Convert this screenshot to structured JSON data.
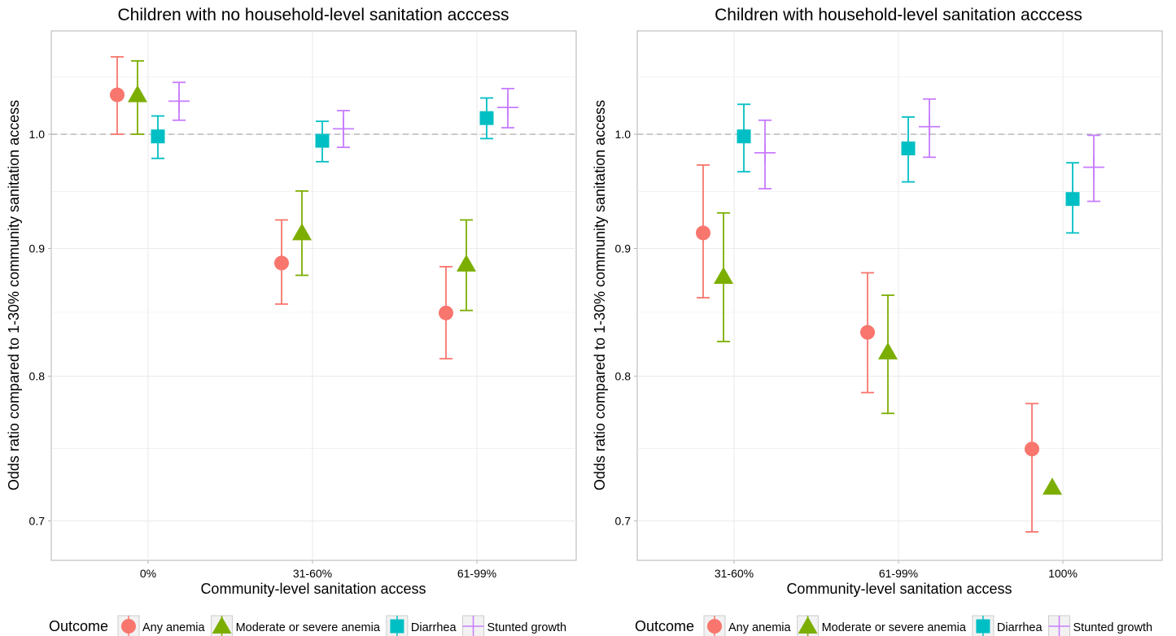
{
  "colors": {
    "any_anemia": "#F8766D",
    "moderate_severe_anemia": "#7CAE00",
    "diarrhea": "#00BFC4",
    "stunted_growth": "#C77CFF",
    "grid": "#EBEBEB",
    "reference_line": "#B3B3B3",
    "panel_border": "#B3B3B3",
    "text": "#000000",
    "tick_text": "#4D4D4D"
  },
  "legend": {
    "title": "Outcome",
    "items": [
      {
        "label": "Any anemia",
        "shape": "circle",
        "color_key": "any_anemia"
      },
      {
        "label": "Moderate or severe anemia",
        "shape": "triangle",
        "color_key": "moderate_severe_anemia"
      },
      {
        "label": "Diarrhea",
        "shape": "square",
        "color_key": "diarrhea"
      },
      {
        "label": "Stunted growth",
        "shape": "cross",
        "color_key": "stunted_growth"
      }
    ]
  },
  "chart_data": [
    {
      "type": "scatter",
      "title": "Children with no household-level sanitation acccess",
      "xlabel": "Community-level sanitation access",
      "ylabel": "Odds ratio compared to 1-30% community sanitation access",
      "y_scale": "log",
      "ylim": [
        0.675,
        1.1
      ],
      "yticks": [
        0.7,
        0.8,
        0.9,
        1.0
      ],
      "ytick_labels": [
        "0.7",
        "0.8",
        "0.9",
        "1.0"
      ],
      "reference_line": 1.0,
      "grid": true,
      "categories": [
        "0%",
        "31-60%",
        "61-99%"
      ],
      "series": [
        {
          "name": "Any anemia",
          "color_key": "any_anemia",
          "shape": "circle",
          "values": [
            1.037,
            0.888,
            0.848
          ],
          "lower": [
            1.0,
            0.855,
            0.813
          ],
          "upper": [
            1.074,
            0.924,
            0.885
          ]
        },
        {
          "name": "Moderate or severe anemia",
          "color_key": "moderate_severe_anemia",
          "shape": "triangle",
          "values": [
            1.037,
            0.913,
            0.887
          ],
          "lower": [
            1.0,
            0.878,
            0.85
          ],
          "upper": [
            1.07,
            0.949,
            0.924
          ]
        },
        {
          "name": "Diarrhea",
          "color_key": "diarrhea",
          "shape": "square",
          "values": [
            0.998,
            0.994,
            1.015
          ],
          "lower": [
            0.978,
            0.975,
            0.996
          ],
          "upper": [
            1.017,
            1.012,
            1.034
          ]
        },
        {
          "name": "Stunted growth",
          "color_key": "stunted_growth",
          "shape": "cross",
          "values": [
            1.031,
            1.005,
            1.025
          ],
          "lower": [
            1.013,
            0.988,
            1.006
          ],
          "upper": [
            1.049,
            1.022,
            1.043
          ]
        }
      ]
    },
    {
      "type": "scatter",
      "title": "Children with household-level sanitation acccess",
      "xlabel": "Community-level sanitation access",
      "ylabel": "Odds ratio compared to 1-30% community sanitation access",
      "y_scale": "log",
      "ylim": [
        0.675,
        1.1
      ],
      "yticks": [
        0.7,
        0.8,
        0.9,
        1.0
      ],
      "ytick_labels": [
        "0.7",
        "0.8",
        "0.9",
        "1.0"
      ],
      "reference_line": 1.0,
      "grid": true,
      "categories": [
        "31-60%",
        "61-99%",
        "100%"
      ],
      "series": [
        {
          "name": "Any anemia",
          "color_key": "any_anemia",
          "shape": "circle",
          "values": [
            0.913,
            0.833,
            0.748
          ],
          "lower": [
            0.86,
            0.788,
            0.693
          ],
          "upper": [
            0.972,
            0.88,
            0.78
          ]
        },
        {
          "name": "Moderate or severe anemia",
          "color_key": "moderate_severe_anemia",
          "shape": "triangle",
          "values": [
            0.877,
            0.818,
            0.722
          ],
          "lower": [
            0.826,
            0.773,
            null
          ],
          "upper": [
            0.93,
            0.862,
            null
          ]
        },
        {
          "name": "Diarrhea",
          "color_key": "diarrhea",
          "shape": "square",
          "values": [
            0.998,
            0.987,
            0.942
          ],
          "lower": [
            0.966,
            0.957,
            0.913
          ],
          "upper": [
            1.028,
            1.016,
            0.974
          ]
        },
        {
          "name": "Stunted growth",
          "color_key": "stunted_growth",
          "shape": "cross",
          "values": [
            0.983,
            1.007,
            0.97
          ],
          "lower": [
            0.951,
            0.979,
            0.94
          ],
          "upper": [
            1.013,
            1.033,
            0.999
          ]
        }
      ]
    }
  ]
}
